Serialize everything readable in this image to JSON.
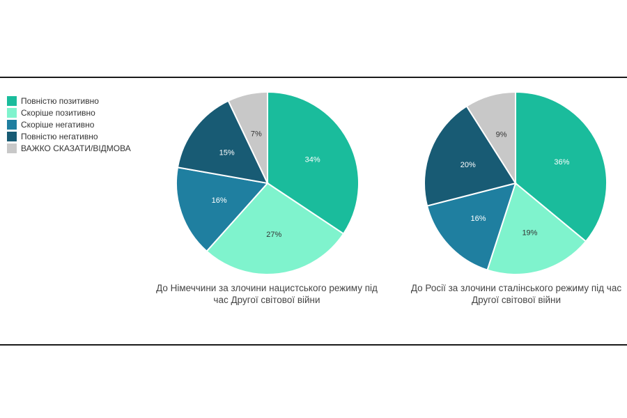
{
  "legend": [
    {
      "label": "Повністю позитивно",
      "color": "#1abc9c"
    },
    {
      "label": "Скоріше позитивно",
      "color": "#7ff3cd"
    },
    {
      "label": "Скоріше негативно",
      "color": "#1f7fa0"
    },
    {
      "label": "Повністю негативно",
      "color": "#185b74"
    },
    {
      "label": "ВАЖКО СКАЗАТИ/ВІДМОВА",
      "color": "#c8c8c8"
    }
  ],
  "chart_data": [
    {
      "type": "pie",
      "title": "До Німеччини за злочини нацистського режиму під час Другої світової війни",
      "title_lines": [
        "До Німеччини за злочини нацистського режиму під",
        "час Другої світової війни"
      ],
      "categories": [
        "Повністю позитивно",
        "Скоріше позитивно",
        "Скоріше негативно",
        "Повністю негативно",
        "ВАЖКО СКАЗАТИ/ВІДМОВА"
      ],
      "values": [
        34,
        27,
        16,
        15,
        7
      ],
      "labels": [
        "34%",
        "27%",
        "16%",
        "15%",
        "7%"
      ]
    },
    {
      "type": "pie",
      "title": "До Росії за злочини сталінського режиму під час Другої світової війни",
      "title_lines": [
        "До Росії за злочини сталінського режиму під час",
        "Другої світової війни"
      ],
      "categories": [
        "Повністю позитивно",
        "Скоріше позитивно",
        "Скоріше негативно",
        "Повністю негативно",
        "ВАЖКО СКАЗАТИ/ВІДМОВА"
      ],
      "values": [
        36,
        19,
        16,
        20,
        9
      ],
      "labels": [
        "36%",
        "19%",
        "16%",
        "20%",
        "9%"
      ]
    }
  ]
}
